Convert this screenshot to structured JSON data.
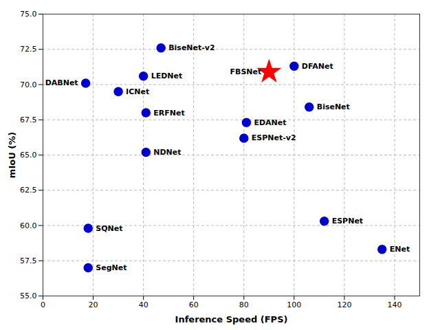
{
  "chart_data": {
    "type": "scatter",
    "xlabel": "Inference Speed (FPS)",
    "ylabel": "mIoU (%)",
    "xlim": [
      0,
      150
    ],
    "ylim": [
      55.0,
      75.0
    ],
    "xticks": [
      0,
      20,
      40,
      60,
      80,
      100,
      120,
      140
    ],
    "yticks": [
      {
        "value": 55.0,
        "label": "55.0"
      },
      57.5,
      {
        "value": 60.0,
        "label": "60.0"
      },
      62.5,
      {
        "value": 65.0,
        "label": "65.0"
      },
      67.5,
      {
        "value": 70.0,
        "label": "70.0"
      },
      72.5,
      {
        "value": 75.0,
        "label": "75.0"
      }
    ],
    "grid": true,
    "series": [
      {
        "marker": "circle",
        "color": "#0000cd",
        "labels": [
          "DABNet",
          "ICNet",
          "LEDNet",
          "ERFNet",
          "NDNet",
          "BiseNet-v2",
          "EDANet",
          "ESPNet-v2",
          "DFANet",
          "BiseNet",
          "SQNet",
          "ESPNet",
          "SegNet",
          "ENet"
        ],
        "x": [
          17,
          30,
          40,
          41,
          41,
          47,
          81,
          80,
          100,
          106,
          18,
          112,
          18,
          135
        ],
        "values": [
          70.1,
          69.5,
          70.6,
          68.0,
          65.2,
          72.6,
          67.3,
          66.2,
          71.3,
          68.4,
          59.8,
          60.3,
          57.0,
          58.3
        ]
      },
      {
        "marker": "star",
        "color": "#ff0000",
        "labels": [
          "FBSNet"
        ],
        "x": [
          90
        ],
        "values": [
          70.9
        ]
      }
    ]
  }
}
